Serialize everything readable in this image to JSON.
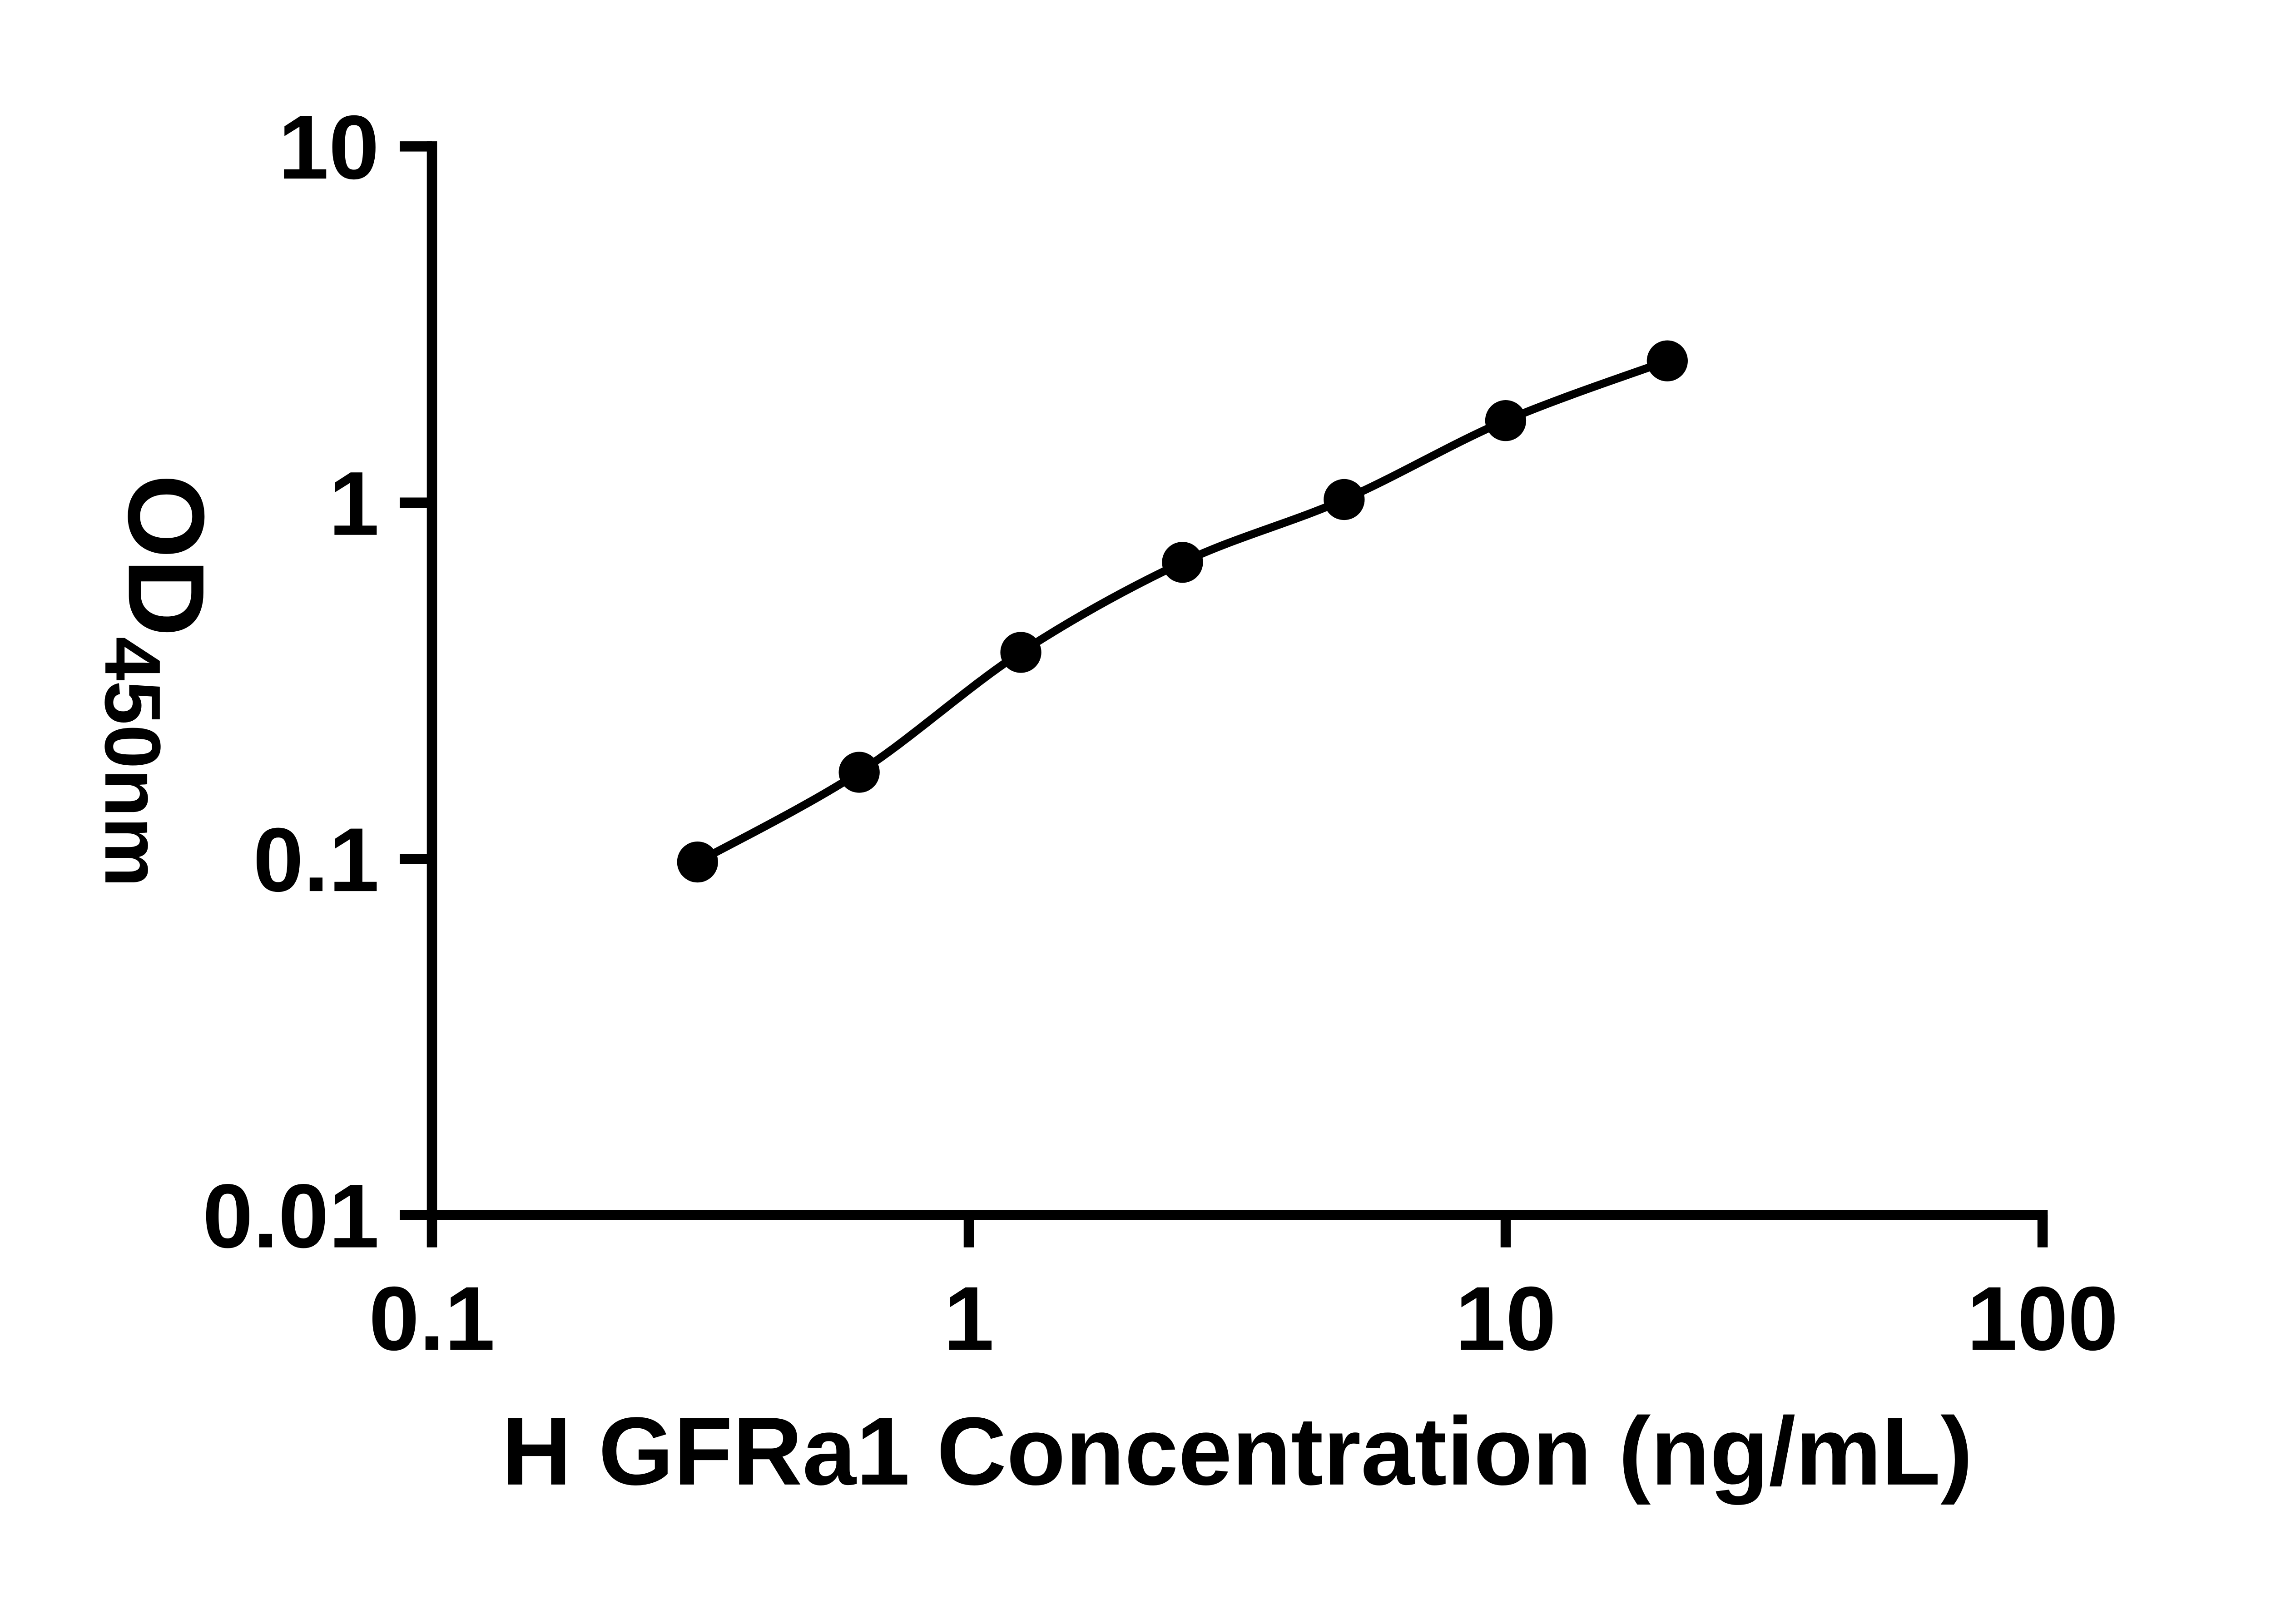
{
  "figure": {
    "background": "#ffffff",
    "ink_color": "#000000"
  },
  "chart_data": {
    "type": "scatter",
    "title": "",
    "xlabel": "H GFRa1 Concentration (ng/mL)",
    "ylabel_main": "OD",
    "ylabel_sub": "450nm",
    "x_scale": "log",
    "y_scale": "log",
    "xlim": [
      0.1,
      100
    ],
    "ylim": [
      0.01,
      10
    ],
    "grid": false,
    "legend": "none",
    "x_ticks": [
      {
        "value": 0.1,
        "label": "0.1"
      },
      {
        "value": 1,
        "label": "1"
      },
      {
        "value": 10,
        "label": "10"
      },
      {
        "value": 100,
        "label": "100"
      }
    ],
    "y_ticks": [
      {
        "value": 0.01,
        "label": "0.01"
      },
      {
        "value": 0.1,
        "label": "0.1"
      },
      {
        "value": 1,
        "label": "1"
      },
      {
        "value": 10,
        "label": "10"
      }
    ],
    "series": [
      {
        "marker": "filled-circle",
        "color": "#000000",
        "line": "smooth",
        "points": [
          {
            "x": 0.3125,
            "y": 0.098
          },
          {
            "x": 0.625,
            "y": 0.175
          },
          {
            "x": 1.25,
            "y": 0.38
          },
          {
            "x": 2.5,
            "y": 0.68
          },
          {
            "x": 5,
            "y": 1.02
          },
          {
            "x": 10,
            "y": 1.7
          },
          {
            "x": 20,
            "y": 2.5
          }
        ]
      }
    ]
  }
}
